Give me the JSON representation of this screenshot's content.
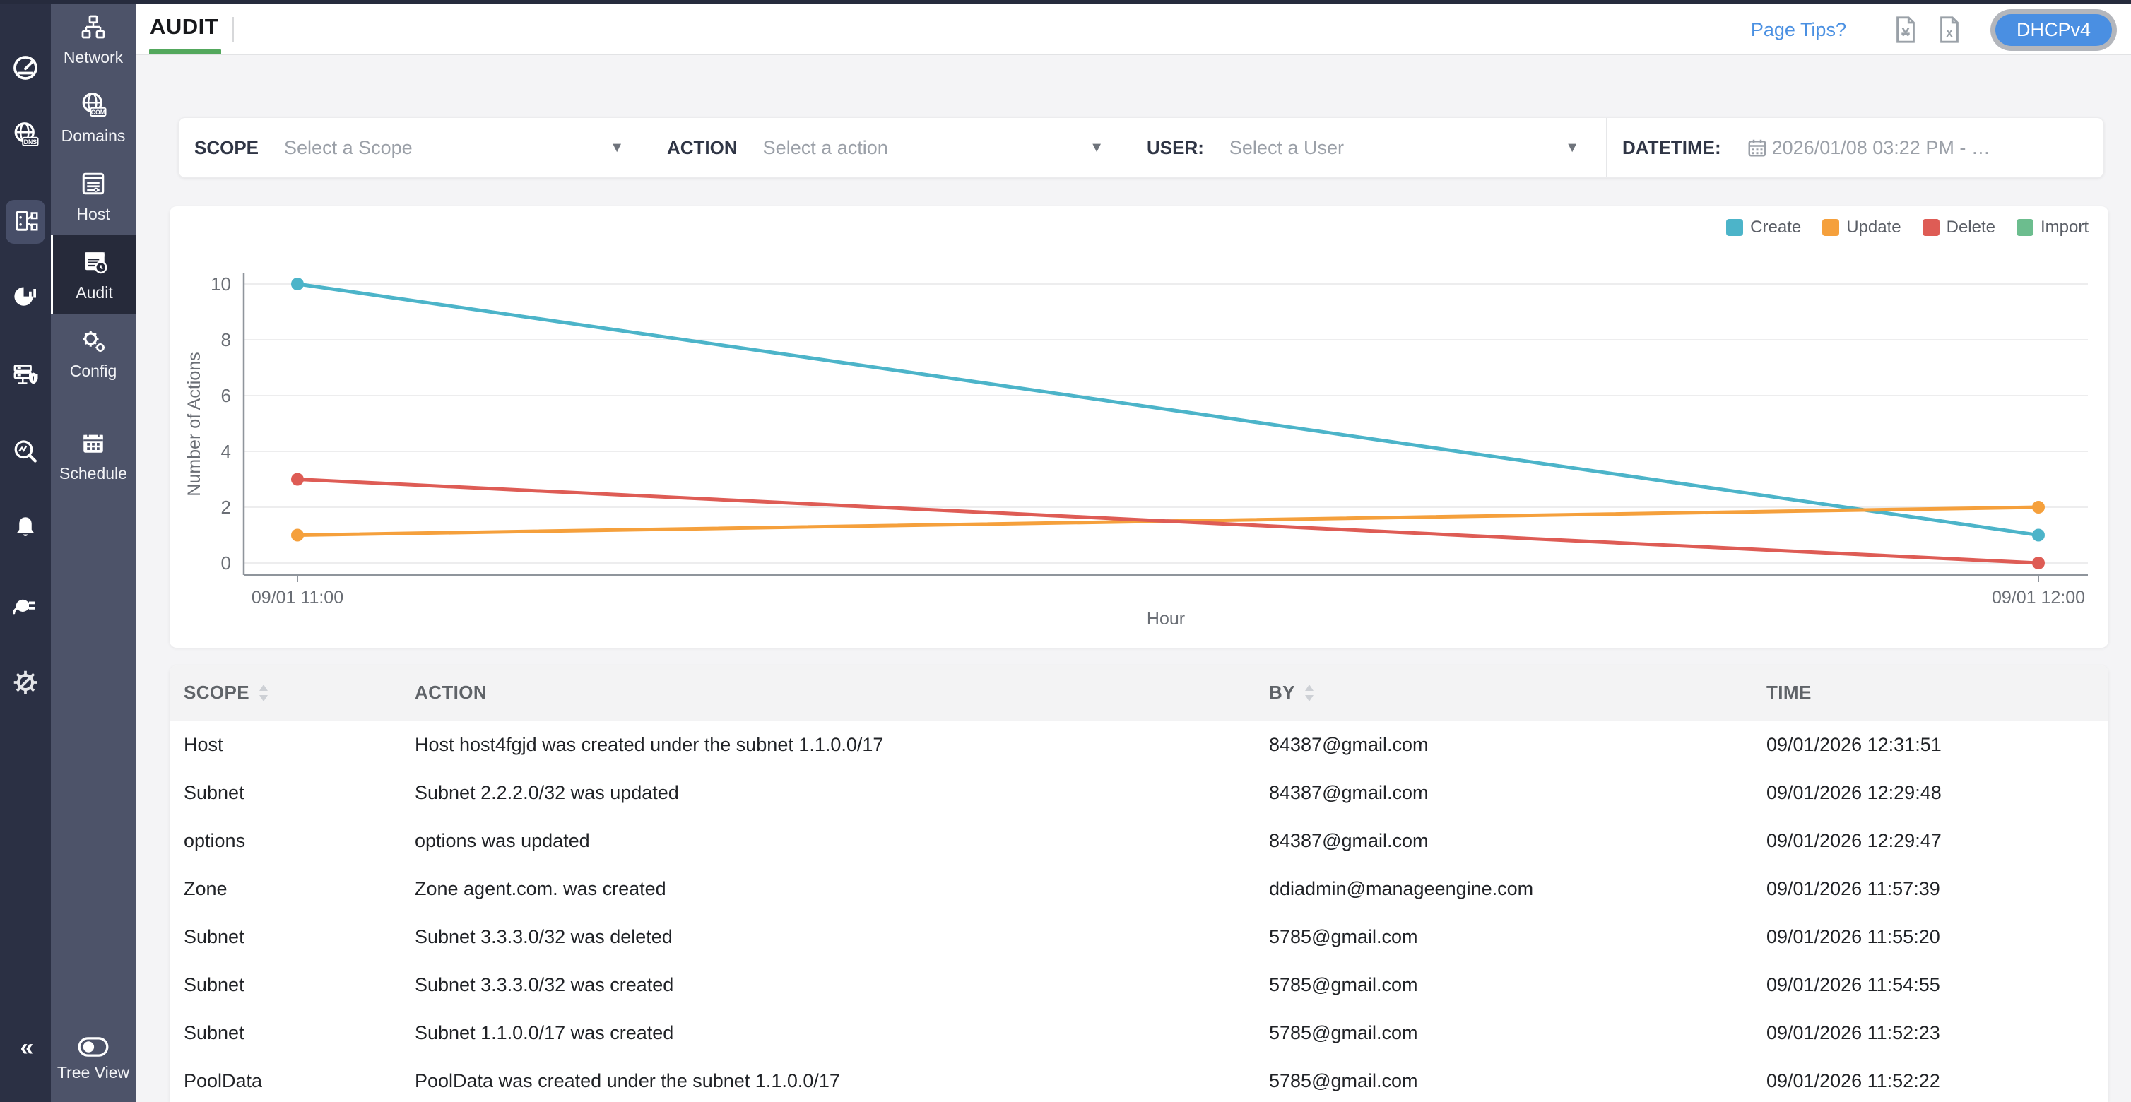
{
  "topbar": {
    "tab": "AUDIT",
    "page_tips": "Page Tips?",
    "env_button": "DHCPv4"
  },
  "icons": {
    "dns_label": "DNS",
    "com_label": "COM"
  },
  "sidebar": {
    "active": "Audit",
    "items": [
      {
        "label": "Network"
      },
      {
        "label": "Domains"
      },
      {
        "label": "Host"
      },
      {
        "label": "Audit"
      },
      {
        "label": "Config"
      },
      {
        "label": "Schedule"
      }
    ],
    "bottom": {
      "label": "Tree View"
    }
  },
  "filters": {
    "scope": {
      "label": "SCOPE",
      "value": "Select a Scope"
    },
    "action": {
      "label": "ACTION",
      "value": "Select a action"
    },
    "user": {
      "label": "USER:",
      "value": "Select a User"
    },
    "datetime": {
      "label": "DATETIME:",
      "value": "2026/01/08 03:22 PM - …"
    }
  },
  "chart_data": {
    "type": "line",
    "x": [
      "09/01 11:00",
      "09/01 12:00"
    ],
    "series": [
      {
        "name": "Create",
        "color": "#4cb4c9",
        "values": [
          10,
          1
        ]
      },
      {
        "name": "Update",
        "color": "#f5a03c",
        "values": [
          1,
          2
        ]
      },
      {
        "name": "Delete",
        "color": "#de5c55",
        "values": [
          3,
          0
        ]
      },
      {
        "name": "Import",
        "color": "#6cbd8e",
        "values": []
      }
    ],
    "title": "",
    "xlabel": "Hour",
    "ylabel": "Number of Actions",
    "yticks": [
      0,
      2,
      4,
      6,
      8,
      10
    ],
    "ylim": [
      0,
      10
    ],
    "grid": true,
    "legend_position": "top-right"
  },
  "table": {
    "columns": [
      {
        "label": "SCOPE",
        "sortable": true
      },
      {
        "label": "ACTION",
        "sortable": false
      },
      {
        "label": "BY",
        "sortable": true
      },
      {
        "label": "TIME",
        "sortable": false
      }
    ],
    "rows": [
      {
        "scope": "Host",
        "action": "Host host4fgjd was created under the subnet 1.1.0.0/17",
        "by": "84387@gmail.com",
        "time": "09/01/2026 12:31:51"
      },
      {
        "scope": "Subnet",
        "action": "Subnet 2.2.2.0/32 was updated",
        "by": "84387@gmail.com",
        "time": "09/01/2026 12:29:48"
      },
      {
        "scope": "options",
        "action": "options was updated",
        "by": "84387@gmail.com",
        "time": "09/01/2026 12:29:47"
      },
      {
        "scope": "Zone",
        "action": "Zone agent.com. was created",
        "by": "ddiadmin@manageengine.com",
        "time": "09/01/2026 11:57:39"
      },
      {
        "scope": "Subnet",
        "action": "Subnet 3.3.3.0/32 was deleted",
        "by": "5785@gmail.com",
        "time": "09/01/2026 11:55:20"
      },
      {
        "scope": "Subnet",
        "action": "Subnet 3.3.3.0/32 was created",
        "by": "5785@gmail.com",
        "time": "09/01/2026 11:54:55"
      },
      {
        "scope": "Subnet",
        "action": "Subnet 1.1.0.0/17 was created",
        "by": "5785@gmail.com",
        "time": "09/01/2026 11:52:23"
      },
      {
        "scope": "PoolData",
        "action": "PoolData was created under the subnet 1.1.0.0/17",
        "by": "5785@gmail.com",
        "time": "09/01/2026 11:52:22"
      }
    ]
  }
}
